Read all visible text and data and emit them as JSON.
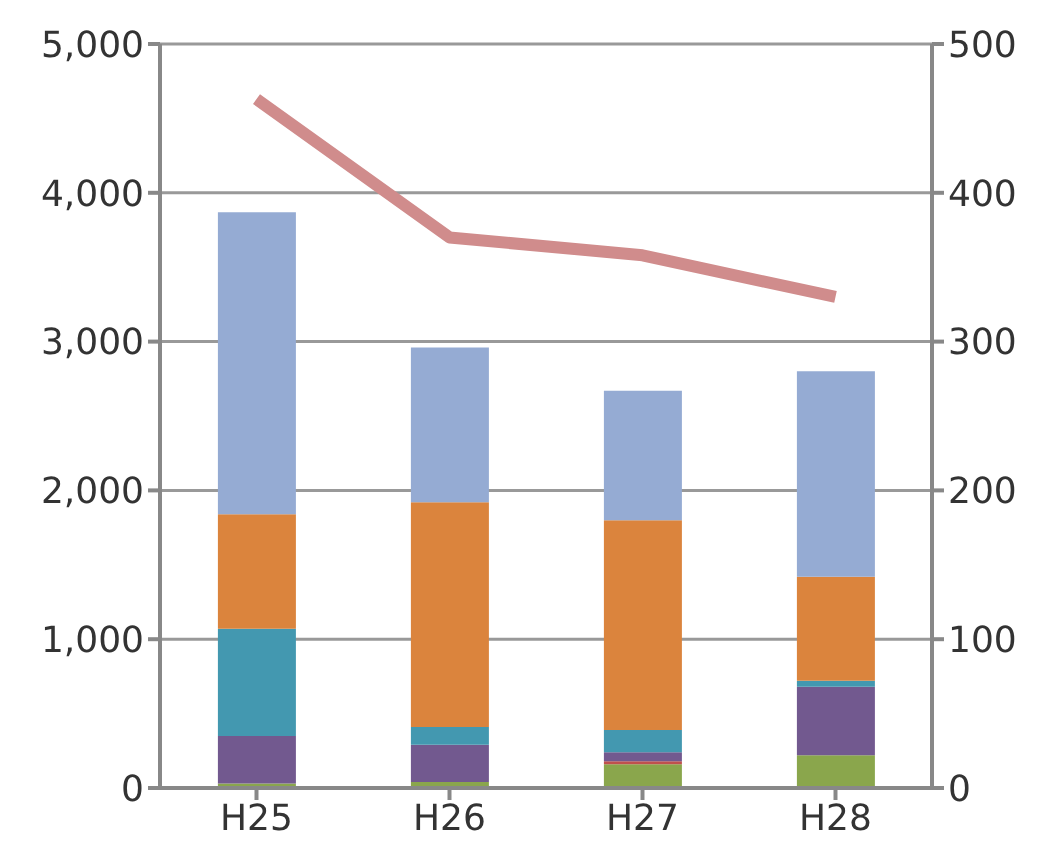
{
  "chart_data": {
    "type": "bar",
    "stacked": true,
    "categories": [
      "H25",
      "H26",
      "H27",
      "H28"
    ],
    "series": [
      {
        "color": "#8aa64c",
        "values": [
          30,
          40,
          160,
          220
        ]
      },
      {
        "color": "#c0504d",
        "values": [
          0,
          0,
          20,
          0
        ]
      },
      {
        "color": "#72598f",
        "values": [
          320,
          250,
          60,
          460
        ]
      },
      {
        "color": "#4398b0",
        "values": [
          720,
          120,
          150,
          40
        ]
      },
      {
        "color": "#db843d",
        "values": [
          770,
          1510,
          1410,
          700
        ]
      },
      {
        "color": "#95abd3",
        "values": [
          2030,
          1040,
          870,
          1380
        ]
      },
      {
        "type": "line",
        "axis": "y2",
        "color": "#d08c8c",
        "values": [
          463,
          370,
          358,
          330
        ]
      }
    ],
    "ylim": [
      0,
      5000
    ],
    "yticks": [
      {
        "value": 0,
        "label": "0"
      },
      {
        "value": 1000,
        "label": "1,000"
      },
      {
        "value": 2000,
        "label": "2,000"
      },
      {
        "value": 3000,
        "label": "3,000"
      },
      {
        "value": 4000,
        "label": "4,000"
      },
      {
        "value": 5000,
        "label": "5,000"
      }
    ],
    "y2lim": [
      0,
      500
    ],
    "y2ticks": [
      0,
      100,
      200,
      300,
      400,
      500
    ],
    "grid": "y",
    "legend": false
  }
}
